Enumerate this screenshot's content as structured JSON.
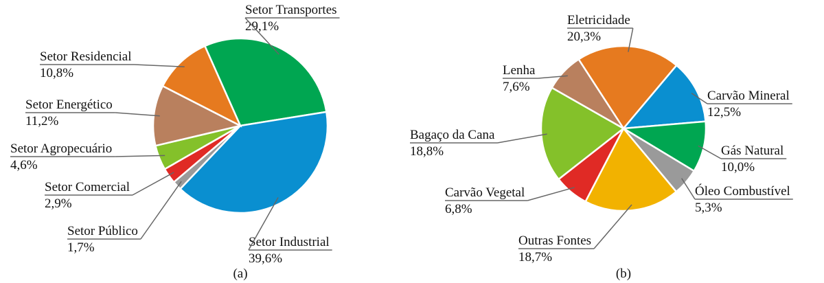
{
  "chart_data": [
    {
      "type": "pie",
      "caption": "(a)",
      "categories": [
        "Setor Transportes",
        "Setor Industrial",
        "Setor Público",
        "Setor Comercial",
        "Setor Agropecuário",
        "Setor Energético",
        "Setor Residencial"
      ],
      "values": [
        29.1,
        39.6,
        1.7,
        2.9,
        4.6,
        11.2,
        10.8
      ],
      "value_labels": [
        "29,1%",
        "39,6%",
        "1,7%",
        "2,9%",
        "4,6%",
        "11,2%",
        "10,8%"
      ],
      "colors": [
        "#00a651",
        "#0a8fd0",
        "#9a9a9a",
        "#e02a25",
        "#84c12a",
        "#b9805e",
        "#e67a1f"
      ]
    },
    {
      "type": "pie",
      "caption": "(b)",
      "categories": [
        "Eletricidade",
        "Carvão Mineral",
        "Gás Natural",
        "Óleo Combustível",
        "Outras Fontes",
        "Carvão Vegetal",
        "Bagaço da Cana",
        "Lenha"
      ],
      "values": [
        20.3,
        12.5,
        10.0,
        5.3,
        18.7,
        6.8,
        18.8,
        7.6
      ],
      "value_labels": [
        "20,3%",
        "12,5%",
        "10,0%",
        "5,3%",
        "18,7%",
        "6,8%",
        "18,8%",
        "7,6%"
      ],
      "colors": [
        "#e67a1f",
        "#0a8fd0",
        "#00a651",
        "#9a9a9a",
        "#f2b200",
        "#e02a25",
        "#84c12a",
        "#b9805e"
      ]
    }
  ]
}
